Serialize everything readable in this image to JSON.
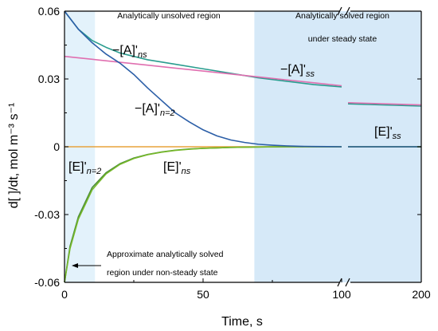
{
  "chart_data": {
    "type": "line",
    "xlabel": "Time, s",
    "ylabel": "d[ ]/dt, mol m⁻³ s⁻¹",
    "ylim": [
      -0.06,
      0.06
    ],
    "x_ticks": [
      "0",
      "50",
      "100",
      "200"
    ],
    "y_ticks": [
      "0.06",
      "0.03",
      "0",
      "-0.03",
      "-0.06"
    ],
    "x_axis_break": "between 100 and 200 s",
    "regions": [
      {
        "label": "Analytically unsolved region"
      },
      {
        "label": "Analytically solved region",
        "label2": "under steady state"
      },
      {
        "label": "Approximate analytically solved",
        "label2": "region under non-steady state"
      }
    ],
    "series": [
      {
        "name": "−[A]'ns",
        "color": "#2a9d8f",
        "x": [
          0,
          5,
          10,
          15,
          20,
          30,
          40,
          50,
          60,
          70,
          80,
          90,
          100
        ],
        "y": [
          0.06,
          0.052,
          0.047,
          0.044,
          0.0415,
          0.0385,
          0.0365,
          0.0345,
          0.0325,
          0.0305,
          0.029,
          0.0275,
          0.0265
        ],
        "x_after_break": [
          100,
          200
        ],
        "y_after_break": [
          0.019,
          0.018
        ]
      },
      {
        "name": "−[A]'ss",
        "color": "#e06fb0",
        "x": [
          0,
          10,
          20,
          30,
          40,
          50,
          60,
          70,
          80,
          90,
          100
        ],
        "y": [
          0.04,
          0.0387,
          0.0374,
          0.0361,
          0.0348,
          0.0335,
          0.0322,
          0.0309,
          0.0296,
          0.0283,
          0.027
        ],
        "x_after_break": [
          100,
          200
        ],
        "y_after_break": [
          0.0195,
          0.0185
        ]
      },
      {
        "name": "−[A]'n=2",
        "color": "#2b5ea7",
        "x": [
          0,
          5,
          10,
          15,
          20,
          25,
          30,
          35,
          40,
          45,
          50,
          55,
          60,
          65,
          70,
          75,
          80,
          85,
          90,
          95,
          100
        ],
        "y": [
          0.06,
          0.052,
          0.046,
          0.041,
          0.037,
          0.032,
          0.026,
          0.0205,
          0.015,
          0.011,
          0.0075,
          0.0048,
          0.003,
          0.0019,
          0.0011,
          0.0007,
          0.0004,
          0.0002,
          0.0001,
          5e-05,
          0.0
        ],
        "x_after_break": [
          100,
          200
        ],
        "y_after_break": [
          0.0,
          0.0
        ]
      },
      {
        "name": "[E]'n=2",
        "color": "#76b82a",
        "x": [
          0,
          2,
          5,
          10,
          15,
          20,
          25,
          30,
          35,
          40,
          45,
          50,
          55,
          60,
          65,
          70,
          80,
          90,
          100
        ],
        "y": [
          -0.06,
          -0.045,
          -0.032,
          -0.019,
          -0.012,
          -0.0078,
          -0.0052,
          -0.0035,
          -0.0024,
          -0.0016,
          -0.0011,
          -0.0007,
          -0.0005,
          -0.0003,
          -0.0002,
          -0.0001,
          0,
          0,
          0
        ],
        "x_after_break": [
          100,
          200
        ],
        "y_after_break": [
          0.0,
          0.0
        ]
      },
      {
        "name": "[E]'ns",
        "color": "#4c8c3a",
        "x": [
          0,
          2,
          5,
          10,
          15,
          20,
          25,
          30,
          35,
          40,
          45,
          50,
          55,
          60,
          65,
          70,
          80,
          90,
          100
        ],
        "y": [
          -0.06,
          -0.044,
          -0.031,
          -0.018,
          -0.0115,
          -0.0075,
          -0.005,
          -0.0034,
          -0.0023,
          -0.0015,
          -0.001,
          -0.0007,
          -0.0005,
          -0.0003,
          -0.0002,
          -0.0001,
          0,
          0,
          0
        ],
        "x_after_break": [
          100,
          200
        ],
        "y_after_break": [
          0.0,
          0.0
        ]
      },
      {
        "name": "[E]'ss",
        "color": "#e8a33c",
        "x": [
          0,
          100
        ],
        "y": [
          0,
          0
        ],
        "x_after_break": [
          100,
          200
        ],
        "y_after_break": [
          0.0,
          0.0
        ]
      }
    ],
    "curve_labels": [
      {
        "main": "−[A]'",
        "sub": "ns"
      },
      {
        "main": "−[A]'",
        "sub": "ss"
      },
      {
        "main": "−[A]'",
        "sub": "n=2"
      },
      {
        "main": "[E]'",
        "sub": "n=2"
      },
      {
        "main": "[E]'",
        "sub": "ns"
      },
      {
        "main": "[E]'",
        "sub": "ss"
      }
    ],
    "region_colors": {
      "left_band": "#e3f2fb",
      "right_band": "#d6e9f8"
    }
  }
}
